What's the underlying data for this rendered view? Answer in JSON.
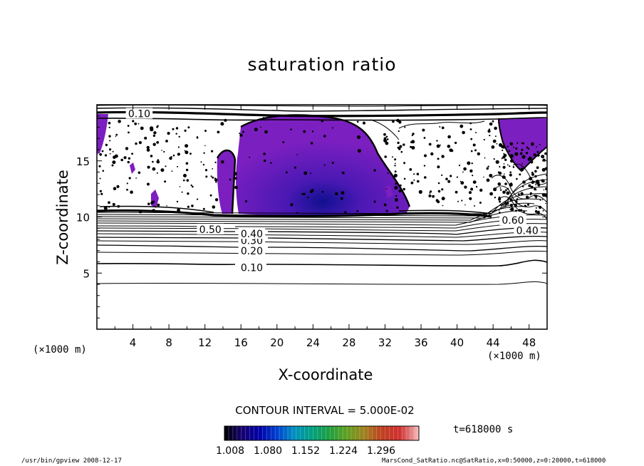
{
  "chart_data": {
    "type": "heatmap",
    "title": "saturation ratio",
    "xlabel": "X-coordinate",
    "ylabel": "Z-coordinate",
    "x_unit_label": "(×1000 m)",
    "x_unit_label_right": "(×1000 m)",
    "xlim": [
      0,
      50
    ],
    "ylim": [
      0,
      20
    ],
    "x_ticks": [
      "4",
      "8",
      "12",
      "16",
      "20",
      "24",
      "28",
      "32",
      "36",
      "40",
      "44",
      "48"
    ],
    "y_ticks": [
      "5",
      "10",
      "15"
    ],
    "contour_interval_label": "CONTOUR INTERVAL = 5.000E-02",
    "contour_interval": 0.05,
    "contour_labels": [
      {
        "text": "0.10",
        "x": 17.2,
        "z": 5.5
      },
      {
        "text": "0.20",
        "x": 17.2,
        "z": 7.0
      },
      {
        "text": "0.30",
        "x": 17.2,
        "z": 7.9
      },
      {
        "text": "0.40",
        "x": 17.2,
        "z": 8.5
      },
      {
        "text": "0.50",
        "x": 12.6,
        "z": 8.9
      },
      {
        "text": "0.60",
        "x": 46.2,
        "z": 9.7
      },
      {
        "text": "0.40",
        "x": 47.8,
        "z": 8.8
      },
      {
        "text": "0.10",
        "x": 4.7,
        "z": 19.2
      }
    ],
    "colorbar": {
      "min": 1.008,
      "max": 1.296,
      "tick_labels": [
        "1.008",
        "1.080",
        "1.152",
        "1.224",
        "1.296"
      ],
      "colors": [
        "#000000",
        "#160070",
        "#0000a8",
        "#0040d0",
        "#0090c0",
        "#00a080",
        "#20a040",
        "#60a020",
        "#a08020",
        "#c04020",
        "#c02020",
        "#e08080",
        "#ffc0c0"
      ]
    },
    "supersaturated_fill": "#7c1fc0",
    "supersaturated_core": "#1a10a0",
    "time": "t=618000 s"
  },
  "footer": {
    "left": "/usr/bin/gpview   2008-12-17",
    "right": "MarsCond_SatRatio.nc@SatRatio,x=0:50000,z=0:20000,t=618000"
  }
}
